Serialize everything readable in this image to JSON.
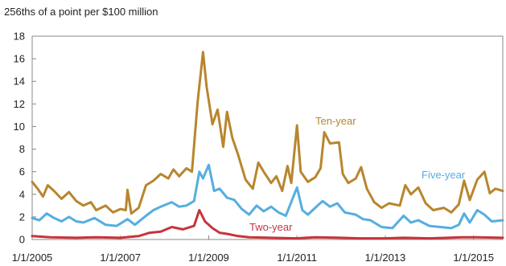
{
  "chart_data": {
    "type": "line",
    "unit_label": "256ths of a point per $100 million",
    "xlabel": "",
    "ylabel": "",
    "x_range": [
      "2005-01-01",
      "2015-08-31"
    ],
    "ylim": [
      0,
      18
    ],
    "y_ticks": [
      "0",
      "2",
      "4",
      "6",
      "8",
      "10",
      "12",
      "14",
      "16",
      "18"
    ],
    "x_ticks": [
      {
        "date": "2005-01-01",
        "label": "1/1/2005"
      },
      {
        "date": "2007-01-01",
        "label": "1/1/2007"
      },
      {
        "date": "2009-01-01",
        "label": "1/1/2009"
      },
      {
        "date": "2011-01-01",
        "label": "1/1/2011"
      },
      {
        "date": "2013-01-01",
        "label": "1/1/2013"
      },
      {
        "date": "2015-01-01",
        "label": "1/1/2015"
      }
    ],
    "grid": false,
    "legend": "none",
    "series": [
      {
        "name": "Ten-year",
        "color": "#b8862e",
        "points": [
          [
            "2005-01-01",
            5.1
          ],
          [
            "2005-02-15",
            4.5
          ],
          [
            "2005-04-01",
            3.8
          ],
          [
            "2005-05-10",
            4.8
          ],
          [
            "2005-07-01",
            4.3
          ],
          [
            "2005-09-01",
            3.6
          ],
          [
            "2005-11-01",
            4.2
          ],
          [
            "2006-01-01",
            3.4
          ],
          [
            "2006-03-01",
            3.0
          ],
          [
            "2006-05-01",
            3.3
          ],
          [
            "2006-06-15",
            2.6
          ],
          [
            "2006-09-01",
            3.0
          ],
          [
            "2006-11-01",
            2.4
          ],
          [
            "2007-01-01",
            2.7
          ],
          [
            "2007-02-15",
            2.6
          ],
          [
            "2007-03-01",
            4.4
          ],
          [
            "2007-04-01",
            2.3
          ],
          [
            "2007-06-01",
            2.8
          ],
          [
            "2007-08-01",
            4.8
          ],
          [
            "2007-10-01",
            5.2
          ],
          [
            "2007-12-01",
            5.8
          ],
          [
            "2008-02-01",
            5.4
          ],
          [
            "2008-03-15",
            6.2
          ],
          [
            "2008-05-01",
            5.6
          ],
          [
            "2008-07-01",
            6.3
          ],
          [
            "2008-08-15",
            6.0
          ],
          [
            "2008-10-01",
            12.2
          ],
          [
            "2008-11-15",
            16.6
          ],
          [
            "2008-12-15",
            13.5
          ],
          [
            "2009-02-01",
            10.2
          ],
          [
            "2009-03-15",
            11.5
          ],
          [
            "2009-05-01",
            8.2
          ],
          [
            "2009-06-01",
            11.3
          ],
          [
            "2009-07-15",
            9.0
          ],
          [
            "2009-09-01",
            7.5
          ],
          [
            "2009-11-01",
            5.3
          ],
          [
            "2010-01-01",
            4.5
          ],
          [
            "2010-02-15",
            6.8
          ],
          [
            "2010-04-01",
            6.0
          ],
          [
            "2010-06-01",
            5.0
          ],
          [
            "2010-07-15",
            5.6
          ],
          [
            "2010-09-01",
            4.3
          ],
          [
            "2010-10-15",
            6.5
          ],
          [
            "2010-11-15",
            5.0
          ],
          [
            "2011-01-01",
            10.1
          ],
          [
            "2011-02-01",
            6.0
          ],
          [
            "2011-04-01",
            5.1
          ],
          [
            "2011-06-01",
            5.5
          ],
          [
            "2011-07-15",
            6.3
          ],
          [
            "2011-08-15",
            9.5
          ],
          [
            "2011-10-01",
            8.5
          ],
          [
            "2011-12-15",
            8.6
          ],
          [
            "2012-01-15",
            5.8
          ],
          [
            "2012-03-01",
            5.0
          ],
          [
            "2012-05-01",
            5.4
          ],
          [
            "2012-06-15",
            6.4
          ],
          [
            "2012-08-01",
            4.5
          ],
          [
            "2012-10-01",
            3.3
          ],
          [
            "2012-12-01",
            2.8
          ],
          [
            "2013-02-01",
            3.2
          ],
          [
            "2013-05-01",
            3.0
          ],
          [
            "2013-06-15",
            4.8
          ],
          [
            "2013-08-01",
            4.0
          ],
          [
            "2013-10-01",
            4.6
          ],
          [
            "2013-12-01",
            3.2
          ],
          [
            "2014-02-01",
            2.6
          ],
          [
            "2014-05-01",
            2.8
          ],
          [
            "2014-07-01",
            2.4
          ],
          [
            "2014-09-01",
            3.1
          ],
          [
            "2014-10-15",
            5.2
          ],
          [
            "2014-12-01",
            3.5
          ],
          [
            "2015-02-01",
            5.3
          ],
          [
            "2015-04-01",
            6.0
          ],
          [
            "2015-05-15",
            4.1
          ],
          [
            "2015-07-01",
            4.5
          ],
          [
            "2015-08-31",
            4.3
          ]
        ]
      },
      {
        "name": "Five-year",
        "color": "#55aee0",
        "points": [
          [
            "2005-01-01",
            1.9
          ],
          [
            "2005-03-01",
            1.7
          ],
          [
            "2005-05-01",
            2.3
          ],
          [
            "2005-07-01",
            1.9
          ],
          [
            "2005-09-01",
            1.6
          ],
          [
            "2005-11-01",
            2.0
          ],
          [
            "2006-01-01",
            1.6
          ],
          [
            "2006-03-01",
            1.5
          ],
          [
            "2006-06-01",
            1.9
          ],
          [
            "2006-09-01",
            1.3
          ],
          [
            "2006-12-01",
            1.2
          ],
          [
            "2007-03-01",
            1.8
          ],
          [
            "2007-05-01",
            1.3
          ],
          [
            "2007-08-01",
            2.1
          ],
          [
            "2007-10-01",
            2.6
          ],
          [
            "2007-12-01",
            2.9
          ],
          [
            "2008-03-01",
            3.3
          ],
          [
            "2008-05-01",
            2.9
          ],
          [
            "2008-07-01",
            3.0
          ],
          [
            "2008-09-01",
            3.4
          ],
          [
            "2008-10-15",
            6.0
          ],
          [
            "2008-11-15",
            5.4
          ],
          [
            "2009-01-01",
            6.6
          ],
          [
            "2009-02-15",
            4.3
          ],
          [
            "2009-04-01",
            4.5
          ],
          [
            "2009-06-01",
            3.7
          ],
          [
            "2009-08-01",
            3.5
          ],
          [
            "2009-10-01",
            2.7
          ],
          [
            "2009-12-01",
            2.2
          ],
          [
            "2010-02-01",
            3.0
          ],
          [
            "2010-04-01",
            2.5
          ],
          [
            "2010-06-01",
            2.9
          ],
          [
            "2010-08-01",
            2.4
          ],
          [
            "2010-10-01",
            2.1
          ],
          [
            "2011-01-01",
            4.6
          ],
          [
            "2011-02-15",
            2.6
          ],
          [
            "2011-04-01",
            2.2
          ],
          [
            "2011-06-01",
            2.8
          ],
          [
            "2011-08-01",
            3.4
          ],
          [
            "2011-10-01",
            2.9
          ],
          [
            "2011-12-01",
            3.2
          ],
          [
            "2012-02-01",
            2.4
          ],
          [
            "2012-05-01",
            2.2
          ],
          [
            "2012-07-01",
            1.8
          ],
          [
            "2012-09-01",
            1.7
          ],
          [
            "2012-12-01",
            1.1
          ],
          [
            "2013-03-01",
            1.0
          ],
          [
            "2013-06-01",
            2.1
          ],
          [
            "2013-08-01",
            1.5
          ],
          [
            "2013-10-01",
            1.7
          ],
          [
            "2014-01-01",
            1.2
          ],
          [
            "2014-04-01",
            1.1
          ],
          [
            "2014-07-01",
            1.0
          ],
          [
            "2014-09-01",
            1.3
          ],
          [
            "2014-10-15",
            2.3
          ],
          [
            "2014-12-01",
            1.5
          ],
          [
            "2015-02-01",
            2.6
          ],
          [
            "2015-04-01",
            2.2
          ],
          [
            "2015-06-01",
            1.6
          ],
          [
            "2015-08-31",
            1.7
          ]
        ]
      },
      {
        "name": "Two-year",
        "color": "#c7343a",
        "points": [
          [
            "2005-01-01",
            0.3
          ],
          [
            "2005-06-01",
            0.2
          ],
          [
            "2006-01-01",
            0.15
          ],
          [
            "2006-06-01",
            0.2
          ],
          [
            "2007-01-01",
            0.15
          ],
          [
            "2007-06-01",
            0.3
          ],
          [
            "2007-09-01",
            0.6
          ],
          [
            "2007-12-01",
            0.7
          ],
          [
            "2008-03-01",
            1.1
          ],
          [
            "2008-06-01",
            0.9
          ],
          [
            "2008-09-01",
            1.2
          ],
          [
            "2008-10-15",
            2.6
          ],
          [
            "2008-12-01",
            1.6
          ],
          [
            "2009-02-01",
            1.0
          ],
          [
            "2009-04-01",
            0.6
          ],
          [
            "2009-06-01",
            0.5
          ],
          [
            "2009-09-01",
            0.3
          ],
          [
            "2009-12-01",
            0.2
          ],
          [
            "2010-06-01",
            0.15
          ],
          [
            "2011-01-01",
            0.1
          ],
          [
            "2011-06-01",
            0.2
          ],
          [
            "2012-01-01",
            0.15
          ],
          [
            "2012-06-01",
            0.1
          ],
          [
            "2013-01-01",
            0.1
          ],
          [
            "2013-06-01",
            0.15
          ],
          [
            "2014-01-01",
            0.1
          ],
          [
            "2014-10-01",
            0.2
          ],
          [
            "2015-02-01",
            0.2
          ],
          [
            "2015-08-31",
            0.15
          ]
        ]
      }
    ],
    "annotations": [
      {
        "series": "Ten-year",
        "text": "Ten-year"
      },
      {
        "series": "Five-year",
        "text": "Five-year"
      },
      {
        "series": "Two-year",
        "text": "Two-year"
      }
    ]
  }
}
